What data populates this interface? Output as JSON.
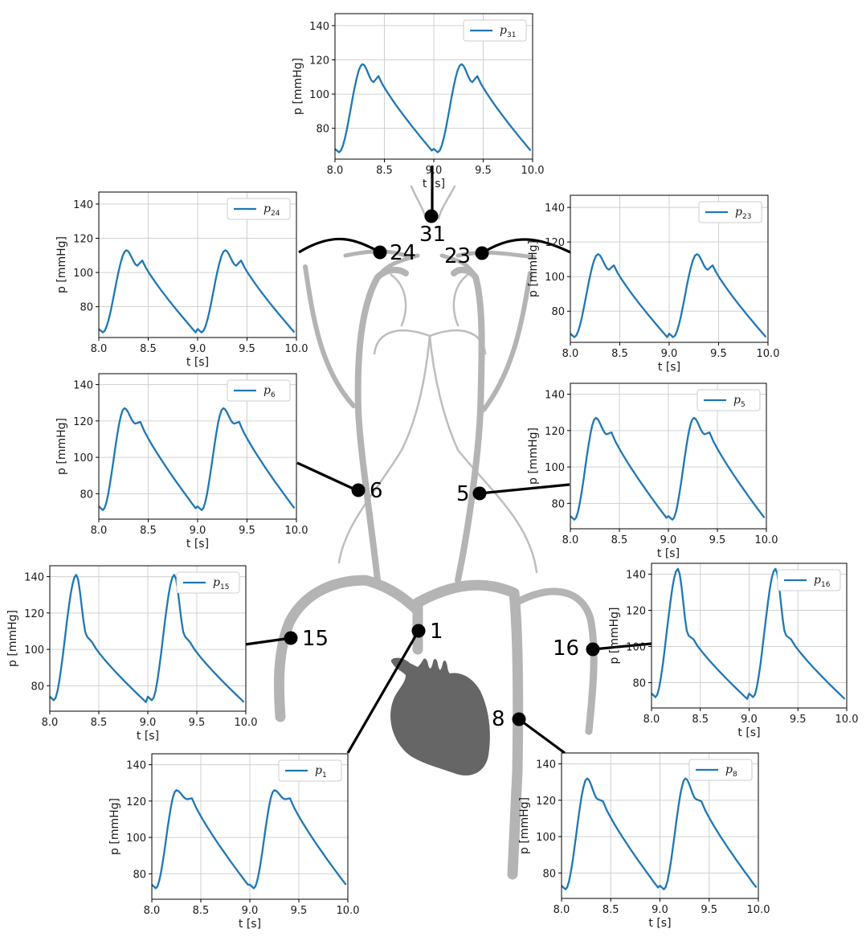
{
  "colors": {
    "vessel": "#b4b4b4",
    "heart": "#666666",
    "line": "#1f77b4",
    "grid": "#d0d0d0",
    "connector": "#000000"
  },
  "nodes": [
    {
      "id": "31",
      "label": "31"
    },
    {
      "id": "24",
      "label": "24"
    },
    {
      "id": "23",
      "label": "23"
    },
    {
      "id": "6",
      "label": "6"
    },
    {
      "id": "5",
      "label": "5"
    },
    {
      "id": "15",
      "label": "15"
    },
    {
      "id": "1",
      "label": "1"
    },
    {
      "id": "16",
      "label": "16"
    },
    {
      "id": "8",
      "label": "8"
    }
  ],
  "chart_data": [
    {
      "id": "p31",
      "type": "line",
      "legend": {
        "main": "p",
        "sub": "31"
      },
      "xlabel": "t [s]",
      "ylabel": "p [mmHg]",
      "xlim": [
        8.0,
        10.0
      ],
      "ylim": [
        62,
        147
      ],
      "xticks": [
        "8.0",
        "8.5",
        "9.0",
        "9.5",
        "10.0"
      ],
      "yticks": [
        "80",
        "100",
        "120",
        "140"
      ],
      "grid": true,
      "legend_position": "top-right",
      "waveform": {
        "t_start": 8.0,
        "diastolic": 68,
        "systolic": 117.5,
        "t_peak": 0.28,
        "notch": 107,
        "notch_rebound": 110.5,
        "end": 67
      }
    },
    {
      "id": "p24",
      "type": "line",
      "legend": {
        "main": "p",
        "sub": "24"
      },
      "xlabel": "t [s]",
      "ylabel": "p [mmHg]",
      "xlim": [
        8.0,
        10.0
      ],
      "ylim": [
        62,
        147
      ],
      "xticks": [
        "8.0",
        "8.5",
        "9.0",
        "9.5",
        "10.0"
      ],
      "yticks": [
        "80",
        "100",
        "120",
        "140"
      ],
      "grid": true,
      "legend_position": "top-right",
      "waveform": {
        "t_start": 8.0,
        "diastolic": 67,
        "systolic": 113,
        "t_peak": 0.28,
        "notch": 104,
        "notch_rebound": 107,
        "end": 65
      }
    },
    {
      "id": "p23",
      "type": "line",
      "legend": {
        "main": "p",
        "sub": "23"
      },
      "xlabel": "t [s]",
      "ylabel": "p [mmHg]",
      "xlim": [
        8.0,
        10.0
      ],
      "ylim": [
        62,
        147
      ],
      "xticks": [
        "8.0",
        "8.5",
        "9.0",
        "9.5",
        "10.0"
      ],
      "yticks": [
        "80",
        "100",
        "120",
        "140"
      ],
      "grid": true,
      "legend_position": "top-right",
      "waveform": {
        "t_start": 8.0,
        "diastolic": 67,
        "systolic": 113,
        "t_peak": 0.28,
        "notch": 104,
        "notch_rebound": 106.5,
        "end": 65
      }
    },
    {
      "id": "p6",
      "type": "line",
      "legend": {
        "main": "p",
        "sub": "6"
      },
      "xlabel": "t [s]",
      "ylabel": "p [mmHg]",
      "xlim": [
        8.0,
        10.0
      ],
      "ylim": [
        66,
        146
      ],
      "xticks": [
        "8.0",
        "8.5",
        "9.0",
        "9.5",
        "10.0"
      ],
      "yticks": [
        "80",
        "100",
        "120",
        "140"
      ],
      "grid": true,
      "legend_position": "top-right",
      "waveform": {
        "t_start": 8.0,
        "diastolic": 73,
        "systolic": 127,
        "t_peak": 0.26,
        "notch": 118.5,
        "notch_rebound": 119.5,
        "end": 72
      }
    },
    {
      "id": "p5",
      "type": "line",
      "legend": {
        "main": "p",
        "sub": "5"
      },
      "xlabel": "t [s]",
      "ylabel": "p [mmHg]",
      "xlim": [
        8.0,
        10.0
      ],
      "ylim": [
        66,
        146
      ],
      "xticks": [
        "8.0",
        "8.5",
        "9.0",
        "9.5",
        "10.0"
      ],
      "yticks": [
        "80",
        "100",
        "120",
        "140"
      ],
      "grid": true,
      "legend_position": "top-right",
      "waveform": {
        "t_start": 8.0,
        "diastolic": 73,
        "systolic": 127,
        "t_peak": 0.26,
        "notch": 118,
        "notch_rebound": 119,
        "end": 72
      }
    },
    {
      "id": "p15",
      "type": "line",
      "legend": {
        "main": "p",
        "sub": "15"
      },
      "xlabel": "t [s]",
      "ylabel": "p [mmHg]",
      "xlim": [
        8.0,
        10.0
      ],
      "ylim": [
        66,
        146
      ],
      "xticks": [
        "8.0",
        "8.5",
        "9.0",
        "9.5",
        "10.0"
      ],
      "yticks": [
        "80",
        "100",
        "120",
        "140"
      ],
      "grid": true,
      "legend_position": "top-right",
      "waveform": {
        "t_start": 8.0,
        "diastolic": 74,
        "systolic": 141,
        "t_peak": 0.27,
        "notch": 107,
        "notch_rebound": 104,
        "end": 71
      }
    },
    {
      "id": "p16",
      "type": "line",
      "legend": {
        "main": "p",
        "sub": "16"
      },
      "xlabel": "t [s]",
      "ylabel": "p [mmHg]",
      "xlim": [
        8.0,
        10.0
      ],
      "ylim": [
        66,
        146
      ],
      "xticks": [
        "8.0",
        "8.5",
        "9.0",
        "9.5",
        "10.0"
      ],
      "yticks": [
        "80",
        "100",
        "120",
        "140"
      ],
      "grid": true,
      "legend_position": "top-right",
      "waveform": {
        "t_start": 8.0,
        "diastolic": 74,
        "systolic": 143,
        "t_peak": 0.27,
        "notch": 106,
        "notch_rebound": 104,
        "end": 71
      }
    },
    {
      "id": "p1",
      "type": "line",
      "legend": {
        "main": "p",
        "sub": "1"
      },
      "xlabel": "t [s]",
      "ylabel": "p [mmHg]",
      "xlim": [
        8.0,
        10.0
      ],
      "ylim": [
        66,
        146
      ],
      "xticks": [
        "8.0",
        "8.5",
        "9.0",
        "9.5",
        "10.0"
      ],
      "yticks": [
        "80",
        "100",
        "120",
        "140"
      ],
      "grid": true,
      "legend_position": "top-right",
      "waveform": {
        "t_start": 8.0,
        "diastolic": 74,
        "systolic": 126,
        "t_peak": 0.25,
        "notch": 121,
        "notch_rebound": 121.5,
        "end": 74
      }
    },
    {
      "id": "p8",
      "type": "line",
      "legend": {
        "main": "p",
        "sub": "8"
      },
      "xlabel": "t [s]",
      "ylabel": "p [mmHg]",
      "xlim": [
        8.0,
        10.0
      ],
      "ylim": [
        66,
        146
      ],
      "xticks": [
        "8.0",
        "8.5",
        "9.0",
        "9.5",
        "10.0"
      ],
      "yticks": [
        "80",
        "100",
        "120",
        "140"
      ],
      "grid": true,
      "legend_position": "top-right",
      "waveform": {
        "t_start": 8.0,
        "diastolic": 73,
        "systolic": 132,
        "t_peak": 0.26,
        "notch": 120.5,
        "notch_rebound": 119.5,
        "end": 72
      }
    }
  ]
}
